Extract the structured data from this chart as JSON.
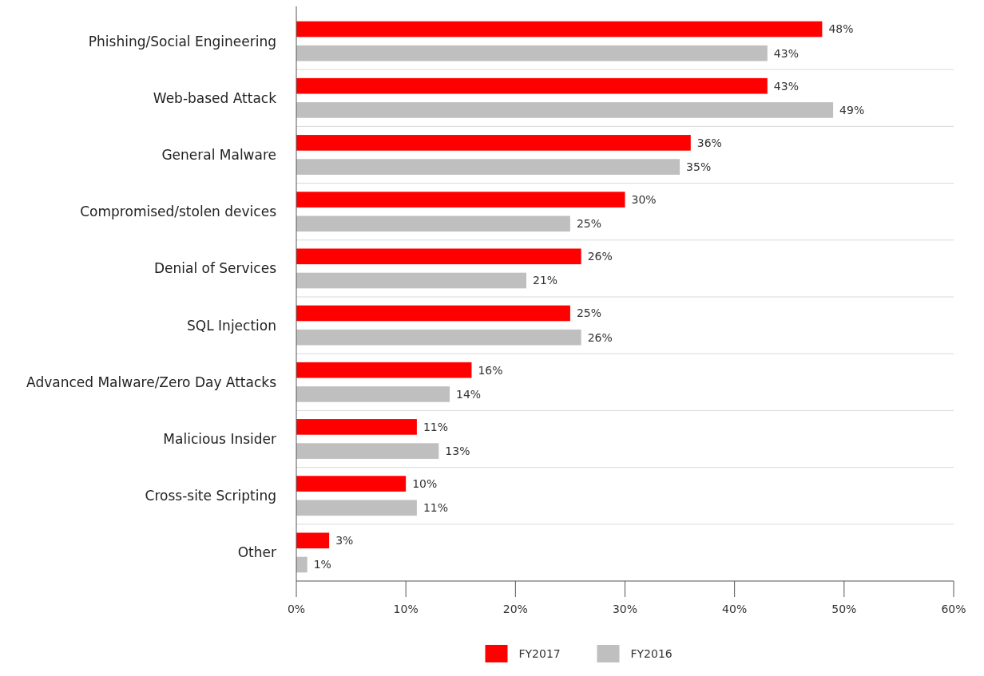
{
  "chart_data": {
    "type": "bar",
    "orientation": "horizontal",
    "categories": [
      "Phishing/Social Engineering",
      "Web-based Attack",
      "General Malware",
      "Compromised/stolen devices",
      "Denial of Services",
      "SQL Injection",
      "Advanced Malware/Zero Day Attacks",
      "Malicious Insider",
      "Cross-site Scripting",
      "Other"
    ],
    "series": [
      {
        "name": "FY2017",
        "color": "#ff0000",
        "values": [
          48,
          43,
          36,
          30,
          26,
          25,
          16,
          11,
          10,
          3
        ],
        "value_labels": [
          "48%",
          "43%",
          "36%",
          "30%",
          "26%",
          "25%",
          "16%",
          "11%",
          "10%",
          "3%"
        ]
      },
      {
        "name": "FY2016",
        "color": "#bfbfbf",
        "values": [
          43,
          49,
          35,
          25,
          21,
          26,
          14,
          13,
          11,
          1
        ],
        "value_labels": [
          "43%",
          "49%",
          "35%",
          "25%",
          "21%",
          "26%",
          "14%",
          "13%",
          "11%",
          "1%"
        ]
      }
    ],
    "xlim": [
      0,
      60
    ],
    "xticks": [
      {
        "value": 0,
        "label": "0%"
      },
      {
        "value": 10,
        "label": "10%"
      },
      {
        "value": 20,
        "label": "20%"
      },
      {
        "value": 30,
        "label": "30%"
      },
      {
        "value": 40,
        "label": "40%"
      },
      {
        "value": 50,
        "label": "50%"
      },
      {
        "value": 60,
        "label": "60%"
      }
    ],
    "grid": false,
    "legend": "bottom"
  }
}
